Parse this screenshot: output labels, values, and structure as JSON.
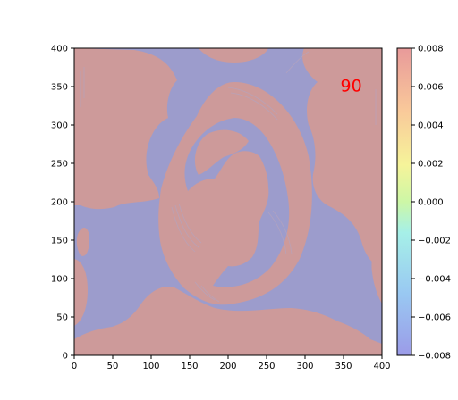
{
  "chart_data": {
    "type": "heatmap",
    "title": "",
    "xlabel": "",
    "ylabel": "",
    "xlim": [
      0,
      400
    ],
    "ylim": [
      0,
      400
    ],
    "x_ticks": [
      "0",
      "50",
      "100",
      "150",
      "200",
      "250",
      "300",
      "350",
      "400"
    ],
    "y_ticks": [
      "0",
      "50",
      "100",
      "150",
      "200",
      "250",
      "300",
      "350",
      "400"
    ],
    "colorbar": {
      "range": [
        -0.008,
        0.008
      ],
      "ticks": [
        "0.008",
        "0.006",
        "0.004",
        "0.002",
        "0.000",
        "−0.002",
        "−0.004",
        "−0.006",
        "−0.008"
      ],
      "colormap": "jet",
      "alpha": 0.4
    },
    "field_colors": {
      "positive": "#cd9a9a",
      "negative": "#9c9ccc"
    },
    "annotation": {
      "text": "90",
      "x": 360,
      "y": 352,
      "color": "#ff0000"
    },
    "grid": false
  }
}
